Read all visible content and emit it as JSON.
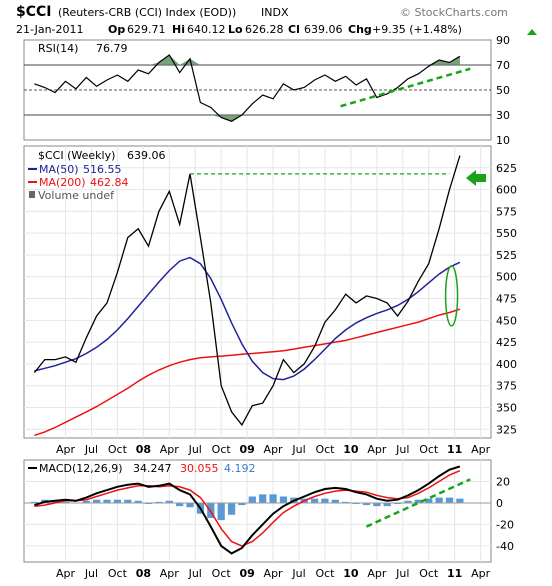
{
  "header": {
    "symbol": "$CCI",
    "name": "(Reuters-CRB (CCI) Index (EOD))",
    "exchange": "INDX",
    "brand": "© StockCharts.com",
    "date": "21-Jan-2011",
    "op_label": "Op",
    "op": "629.71",
    "hi_label": "Hi",
    "hi": "640.12",
    "lo_label": "Lo",
    "lo": "626.28",
    "cl_label": "Cl",
    "cl": "639.06",
    "chg_label": "Chg",
    "chg": "+9.35 (+1.48%)"
  },
  "colors": {
    "price": "#000000",
    "ma50": "#22229a",
    "ma200": "#ee1111",
    "annotation": "#1aa31a",
    "macd_line": "#000000",
    "signal_line": "#ee1111",
    "histogram": "#5a9ad4",
    "rsi_fill": "#5a8a5a"
  },
  "chart_data": [
    {
      "type": "line",
      "panel": "rsi",
      "label": "RSI(14)",
      "value": "76.79",
      "ylim": [
        10,
        90
      ],
      "levels": [
        70,
        50,
        30
      ],
      "ticks": [
        "90",
        "70",
        "50",
        "30",
        "10"
      ],
      "x": [
        2006.95,
        2007.05,
        2007.15,
        2007.25,
        2007.35,
        2007.45,
        2007.55,
        2007.65,
        2007.75,
        2007.85,
        2007.95,
        2008.05,
        2008.15,
        2008.25,
        2008.35,
        2008.45,
        2008.55,
        2008.65,
        2008.75,
        2008.85,
        2008.95,
        2009.05,
        2009.15,
        2009.25,
        2009.35,
        2009.45,
        2009.55,
        2009.65,
        2009.75,
        2009.85,
        2009.95,
        2010.05,
        2010.15,
        2010.25,
        2010.35,
        2010.45,
        2010.55,
        2010.65,
        2010.75,
        2010.85,
        2010.95,
        2011.05
      ],
      "values": [
        55,
        52,
        48,
        57,
        51,
        60,
        53,
        58,
        62,
        57,
        66,
        63,
        72,
        78,
        64,
        75,
        40,
        36,
        28,
        25,
        30,
        39,
        46,
        43,
        55,
        50,
        52,
        58,
        62,
        57,
        61,
        54,
        59,
        44,
        47,
        52,
        59,
        63,
        69,
        74,
        72,
        77
      ]
    },
    {
      "type": "line",
      "panel": "price",
      "label": "$CCI (Weekly)",
      "value": "639.06",
      "ylim": [
        315,
        650
      ],
      "ticks": [
        "625",
        "600",
        "575",
        "550",
        "525",
        "500",
        "475",
        "450",
        "425",
        "400",
        "375",
        "350",
        "325"
      ],
      "x_ticks": [
        "Apr",
        "Jul",
        "Oct",
        "08",
        "Apr",
        "Jul",
        "Oct",
        "09",
        "Apr",
        "Jul",
        "Oct",
        "10",
        "Apr",
        "Jul",
        "Oct",
        "11",
        "Apr"
      ],
      "x": [
        2006.95,
        2007.05,
        2007.15,
        2007.25,
        2007.35,
        2007.45,
        2007.55,
        2007.65,
        2007.75,
        2007.85,
        2007.95,
        2008.05,
        2008.15,
        2008.25,
        2008.35,
        2008.45,
        2008.55,
        2008.65,
        2008.75,
        2008.85,
        2008.95,
        2009.05,
        2009.15,
        2009.25,
        2009.35,
        2009.45,
        2009.55,
        2009.65,
        2009.75,
        2009.85,
        2009.95,
        2010.05,
        2010.15,
        2010.25,
        2010.35,
        2010.45,
        2010.55,
        2010.65,
        2010.75,
        2010.85,
        2010.95,
        2011.05
      ],
      "series": [
        {
          "name": "$CCI (Weekly)",
          "values": [
            390,
            405,
            405,
            408,
            402,
            430,
            455,
            470,
            505,
            545,
            555,
            535,
            575,
            598,
            560,
            618,
            545,
            470,
            375,
            345,
            330,
            352,
            355,
            375,
            405,
            390,
            400,
            420,
            448,
            462,
            480,
            470,
            478,
            475,
            470,
            455,
            472,
            495,
            515,
            555,
            600,
            639
          ]
        },
        {
          "name": "MA(50)",
          "value_label": "516.55",
          "values": [
            392,
            395,
            398,
            402,
            406,
            412,
            419,
            428,
            439,
            452,
            466,
            480,
            494,
            507,
            518,
            522,
            515,
            498,
            474,
            447,
            423,
            403,
            390,
            383,
            382,
            386,
            394,
            405,
            417,
            429,
            439,
            447,
            453,
            458,
            462,
            467,
            474,
            483,
            493,
            503,
            511,
            516.55
          ]
        },
        {
          "name": "MA(200)",
          "value_label": "462.84",
          "values": [
            318,
            322,
            327,
            333,
            339,
            345,
            351,
            358,
            365,
            372,
            380,
            387,
            393,
            398,
            402,
            405,
            407,
            408,
            409,
            410,
            411,
            412,
            413,
            414,
            415,
            417,
            419,
            421,
            423,
            425,
            427,
            430,
            433,
            436,
            439,
            442,
            445,
            448,
            452,
            456,
            459,
            462.84
          ]
        }
      ],
      "extra_legend": [
        "Volume undef"
      ]
    },
    {
      "type": "line",
      "panel": "macd",
      "label": "MACD(12,26,9)",
      "macd_value": "34.247",
      "signal_value": "30.055",
      "hist_value": "4.192",
      "ylim": [
        -55,
        40
      ],
      "ticks": [
        "20",
        "0",
        "-20",
        "-40"
      ],
      "x_ticks": [
        "Apr",
        "Jul",
        "Oct",
        "08",
        "Apr",
        "Jul",
        "Oct",
        "09",
        "Apr",
        "Jul",
        "Oct",
        "10",
        "Apr",
        "Jul",
        "Oct",
        "11",
        "Apr"
      ],
      "x": [
        2006.95,
        2007.05,
        2007.15,
        2007.25,
        2007.35,
        2007.45,
        2007.55,
        2007.65,
        2007.75,
        2007.85,
        2007.95,
        2008.05,
        2008.15,
        2008.25,
        2008.35,
        2008.45,
        2008.55,
        2008.65,
        2008.75,
        2008.85,
        2008.95,
        2009.05,
        2009.15,
        2009.25,
        2009.35,
        2009.45,
        2009.55,
        2009.65,
        2009.75,
        2009.85,
        2009.95,
        2010.05,
        2010.15,
        2010.25,
        2010.35,
        2010.45,
        2010.55,
        2010.65,
        2010.75,
        2010.85,
        2010.95,
        2011.05
      ],
      "series": [
        {
          "name": "MACD",
          "values": [
            -2,
            1,
            2,
            3,
            2,
            5,
            9,
            12,
            15,
            17,
            18,
            15,
            16,
            18,
            12,
            8,
            -5,
            -22,
            -40,
            -47,
            -42,
            -30,
            -20,
            -10,
            -3,
            2,
            6,
            10,
            13,
            14,
            13,
            10,
            8,
            4,
            2,
            3,
            7,
            12,
            18,
            25,
            31,
            34
          ]
        },
        {
          "name": "Signal",
          "values": [
            -3,
            -2,
            0,
            2,
            2,
            3,
            6,
            9,
            12,
            14,
            16,
            16,
            15,
            16,
            15,
            12,
            5,
            -8,
            -24,
            -36,
            -40,
            -36,
            -28,
            -18,
            -9,
            -3,
            2,
            6,
            9,
            11,
            12,
            11,
            10,
            7,
            5,
            4,
            5,
            9,
            14,
            20,
            26,
            30
          ]
        },
        {
          "name": "Histogram",
          "values": [
            1,
            3,
            2,
            1,
            0,
            2,
            3,
            3,
            3,
            3,
            2,
            -1,
            1,
            2,
            -3,
            -4,
            -10,
            -14,
            -16,
            -11,
            -2,
            6,
            8,
            8,
            6,
            5,
            4,
            4,
            4,
            3,
            1,
            -1,
            -2,
            -3,
            -3,
            -1,
            2,
            3,
            4,
            5,
            5,
            4
          ]
        }
      ]
    }
  ]
}
